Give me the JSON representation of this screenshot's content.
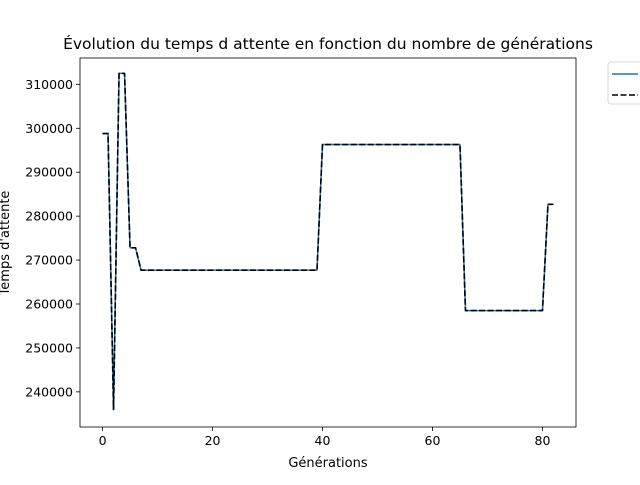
{
  "chart_data": {
    "type": "line",
    "title": "Évolution du temps d attente en fonction du nombre de générations",
    "xlabel": "Générations",
    "ylabel": "Temps d'attente",
    "xlim": [
      -4.1,
      86.1
    ],
    "ylim": [
      232000,
      316000
    ],
    "x_ticks": [
      0,
      20,
      40,
      60,
      80
    ],
    "y_ticks": [
      240000,
      250000,
      260000,
      270000,
      280000,
      290000,
      300000,
      310000
    ],
    "grid": false,
    "legend": {
      "placement": "upper-right-outside",
      "entries": [
        "",
        ""
      ]
    },
    "x": [
      0,
      1,
      2,
      3,
      4,
      5,
      6,
      7,
      8,
      9,
      10,
      11,
      12,
      13,
      14,
      15,
      16,
      17,
      18,
      19,
      20,
      21,
      22,
      23,
      24,
      25,
      26,
      27,
      28,
      29,
      30,
      31,
      32,
      33,
      34,
      35,
      36,
      37,
      38,
      39,
      40,
      41,
      42,
      43,
      44,
      45,
      46,
      47,
      48,
      49,
      50,
      51,
      52,
      53,
      54,
      55,
      56,
      57,
      58,
      59,
      60,
      61,
      62,
      63,
      64,
      65,
      66,
      67,
      68,
      69,
      70,
      71,
      72,
      73,
      74,
      75,
      76,
      77,
      78,
      79,
      80,
      81,
      82
    ],
    "series": [
      {
        "color": "#1f77b4",
        "dash": "solid",
        "values": [
          298800,
          298800,
          236000,
          312500,
          312500,
          272800,
          272800,
          267700,
          267700,
          267700,
          267700,
          267700,
          267700,
          267700,
          267700,
          267700,
          267700,
          267700,
          267700,
          267700,
          267700,
          267700,
          267700,
          267700,
          267700,
          267700,
          267700,
          267700,
          267700,
          267700,
          267700,
          267700,
          267700,
          267700,
          267700,
          267700,
          267700,
          267700,
          267700,
          267700,
          296300,
          296300,
          296300,
          296300,
          296300,
          296300,
          296300,
          296300,
          296300,
          296300,
          296300,
          296300,
          296300,
          296300,
          296300,
          296300,
          296300,
          296300,
          296300,
          296300,
          296300,
          296300,
          296300,
          296300,
          296300,
          296300,
          258500,
          258500,
          258500,
          258500,
          258500,
          258500,
          258500,
          258500,
          258500,
          258500,
          258500,
          258500,
          258500,
          258500,
          258500,
          282700,
          282700
        ]
      },
      {
        "color": "#000000",
        "dash": "dashed",
        "values": [
          298800,
          298800,
          236000,
          312500,
          312500,
          272800,
          272800,
          267700,
          267700,
          267700,
          267700,
          267700,
          267700,
          267700,
          267700,
          267700,
          267700,
          267700,
          267700,
          267700,
          267700,
          267700,
          267700,
          267700,
          267700,
          267700,
          267700,
          267700,
          267700,
          267700,
          267700,
          267700,
          267700,
          267700,
          267700,
          267700,
          267700,
          267700,
          267700,
          267700,
          296300,
          296300,
          296300,
          296300,
          296300,
          296300,
          296300,
          296300,
          296300,
          296300,
          296300,
          296300,
          296300,
          296300,
          296300,
          296300,
          296300,
          296300,
          296300,
          296300,
          296300,
          296300,
          296300,
          296300,
          296300,
          296300,
          258500,
          258500,
          258500,
          258500,
          258500,
          258500,
          258500,
          258500,
          258500,
          258500,
          258500,
          258500,
          258500,
          258500,
          258500,
          282700,
          282700
        ]
      }
    ]
  }
}
